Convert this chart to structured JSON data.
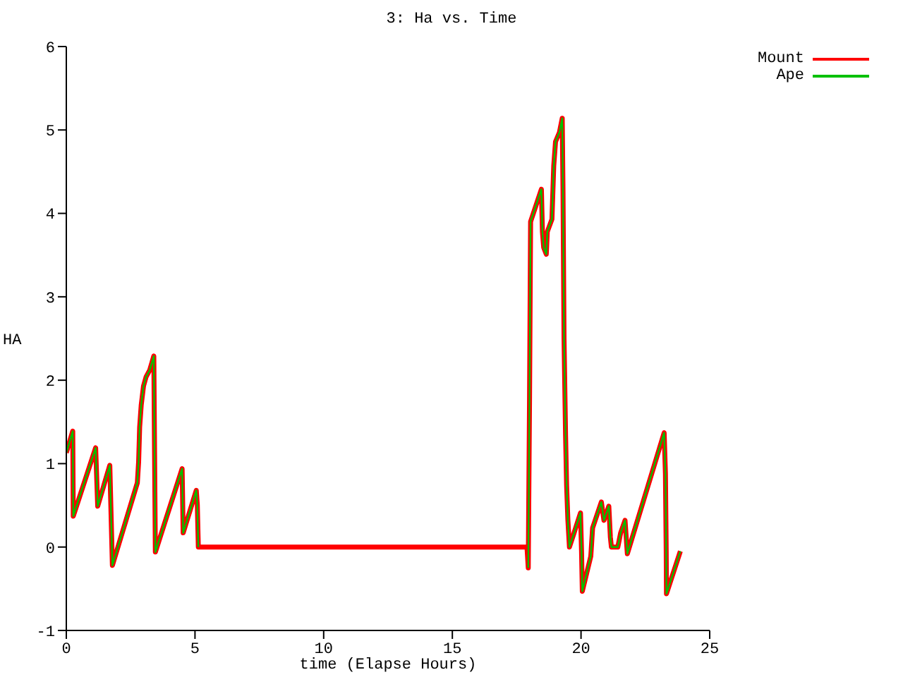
{
  "chart_data": {
    "type": "line",
    "title": "3: Ha vs. Time",
    "xlabel": "time (Elapse Hours)",
    "ylabel": "HA",
    "x": [
      0,
      0.25,
      0.27,
      1.14,
      1.22,
      1.69,
      1.79,
      2.76,
      2.81,
      2.85,
      2.91,
      3.0,
      3.1,
      3.24,
      3.4,
      3.43,
      3.46,
      4.5,
      4.54,
      5.05,
      5.09,
      5.13,
      17.9,
      17.95,
      18.0,
      18.04,
      18.46,
      18.5,
      18.55,
      18.65,
      18.69,
      18.87,
      18.94,
      19.01,
      19.16,
      19.27,
      19.3,
      19.34,
      19.4,
      19.44,
      19.49,
      19.55,
      19.73,
      19.98,
      20.02,
      20.05,
      20.38,
      20.45,
      20.79,
      20.89,
      21.08,
      21.14,
      21.18,
      21.43,
      21.54,
      21.71,
      21.8,
      23.23,
      23.28,
      23.31,
      23.32,
      23.86
    ],
    "series": [
      {
        "name": "Mount",
        "color": "#ff0000",
        "values": [
          1.13,
          1.39,
          0.37,
          1.19,
          0.49,
          0.98,
          -0.22,
          0.77,
          1.02,
          1.44,
          1.7,
          1.93,
          2.04,
          2.12,
          2.29,
          1.1,
          -0.06,
          0.94,
          0.17,
          0.68,
          0.51,
          0,
          0,
          -0.25,
          1.81,
          3.9,
          4.29,
          3.78,
          3.59,
          3.51,
          3.78,
          3.93,
          4.57,
          4.86,
          4.97,
          5.14,
          4.26,
          2.5,
          1.33,
          0.74,
          0.32,
          0,
          0.17,
          0.41,
          -0.05,
          -0.53,
          -0.11,
          0.23,
          0.54,
          0.32,
          0.49,
          0.12,
          0,
          0,
          0.17,
          0.32,
          -0.08,
          1.37,
          0.88,
          -0.05,
          -0.56,
          -0.05
        ]
      },
      {
        "name": "Ape",
        "color": "#00c000",
        "values": [
          1.13,
          1.39,
          0.37,
          1.19,
          0.49,
          0.98,
          -0.22,
          0.77,
          1.02,
          1.44,
          1.7,
          1.93,
          2.04,
          2.12,
          2.29,
          1.1,
          -0.06,
          0.94,
          0.17,
          0.68,
          0.51,
          0,
          null,
          -0.25,
          1.81,
          3.9,
          4.29,
          3.78,
          3.59,
          3.51,
          3.78,
          3.93,
          4.57,
          4.86,
          4.97,
          5.14,
          4.26,
          2.5,
          1.33,
          0.74,
          0.32,
          0,
          0.17,
          0.41,
          -0.05,
          -0.53,
          -0.11,
          0.23,
          0.54,
          0.32,
          0.49,
          0.12,
          0,
          0,
          0.17,
          0.32,
          -0.08,
          1.37,
          0.88,
          -0.05,
          -0.56,
          -0.05
        ]
      }
    ],
    "xlim": [
      0,
      25
    ],
    "xticks": [
      0,
      5,
      10,
      15,
      20,
      25
    ],
    "ylim": [
      -1,
      6
    ],
    "yticks": [
      -1,
      0,
      1,
      2,
      3,
      4,
      5,
      6
    ],
    "grid": false,
    "legend": "top right",
    "marker": "none",
    "line_style": "solid"
  }
}
